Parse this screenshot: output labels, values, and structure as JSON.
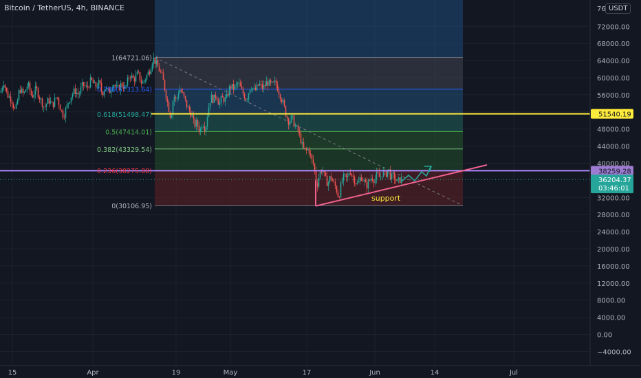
{
  "header": {
    "symbol_title": "Bitcoin / TetherUS, 4h, BINANCE",
    "currency": "USDT",
    "top_axis_label": "76"
  },
  "chart_data": {
    "type": "candlestick",
    "symbol": "Bitcoin / TetherUS",
    "interval": "4h",
    "exchange": "BINANCE",
    "x_tick_labels": [
      "15",
      "Apr",
      "19",
      "May",
      "17",
      "Jun",
      "14",
      "Jul"
    ],
    "y_tick_labels": [
      "72000.00",
      "68000.00",
      "64000.00",
      "60000.00",
      "56000.00",
      "52000.00",
      "48000.00",
      "44000.00",
      "40000.00",
      "32000.00",
      "28000.00",
      "24000.00",
      "20000.00",
      "16000.00",
      "12000.00",
      "8000.00",
      "4000.00",
      "0.00",
      "−4000.00"
    ],
    "ylim": [
      -6000,
      76000
    ],
    "price_path": [
      [
        0,
        56500
      ],
      [
        5,
        59000
      ],
      [
        10,
        56000
      ],
      [
        16,
        55000
      ],
      [
        22,
        52000
      ],
      [
        28,
        57500
      ],
      [
        34,
        56000
      ],
      [
        40,
        58500
      ],
      [
        46,
        55500
      ],
      [
        52,
        57500
      ],
      [
        58,
        55000
      ],
      [
        64,
        53000
      ],
      [
        70,
        54800
      ],
      [
        76,
        53500
      ],
      [
        82,
        55800
      ],
      [
        88,
        52500
      ],
      [
        92,
        51000
      ],
      [
        96,
        53000
      ],
      [
        102,
        55500
      ],
      [
        108,
        57000
      ],
      [
        114,
        56000
      ],
      [
        120,
        58500
      ],
      [
        126,
        57500
      ],
      [
        132,
        59500
      ],
      [
        138,
        57800
      ],
      [
        144,
        58800
      ],
      [
        148,
        56200
      ],
      [
        152,
        57800
      ],
      [
        158,
        56500
      ],
      [
        164,
        58800
      ],
      [
        170,
        57200
      ],
      [
        176,
        58500
      ],
      [
        182,
        57500
      ],
      [
        188,
        60800
      ],
      [
        194,
        59500
      ],
      [
        200,
        61000
      ],
      [
        206,
        58500
      ],
      [
        212,
        60200
      ],
      [
        218,
        62000
      ],
      [
        222,
        64700
      ],
      [
        226,
        63500
      ],
      [
        230,
        62200
      ],
      [
        236,
        60000
      ],
      [
        242,
        55000
      ],
      [
        248,
        50500
      ],
      [
        252,
        56000
      ],
      [
        256,
        54500
      ],
      [
        260,
        57500
      ],
      [
        266,
        55800
      ],
      [
        272,
        53000
      ],
      [
        278,
        51500
      ],
      [
        282,
        48800
      ],
      [
        286,
        49500
      ],
      [
        290,
        47300
      ],
      [
        294,
        49800
      ],
      [
        298,
        47800
      ],
      [
        302,
        52500
      ],
      [
        306,
        55500
      ],
      [
        310,
        54800
      ],
      [
        314,
        56200
      ],
      [
        318,
        53800
      ],
      [
        322,
        55200
      ],
      [
        328,
        54800
      ],
      [
        334,
        58000
      ],
      [
        340,
        57500
      ],
      [
        346,
        58800
      ],
      [
        352,
        56500
      ],
      [
        358,
        55000
      ],
      [
        364,
        58200
      ],
      [
        370,
        56800
      ],
      [
        376,
        58500
      ],
      [
        382,
        57500
      ],
      [
        388,
        59000
      ],
      [
        394,
        58200
      ],
      [
        400,
        58800
      ],
      [
        404,
        57200
      ],
      [
        408,
        55500
      ],
      [
        412,
        53500
      ],
      [
        416,
        51000
      ],
      [
        420,
        49500
      ],
      [
        424,
        50800
      ],
      [
        428,
        48800
      ],
      [
        432,
        47800
      ],
      [
        436,
        46000
      ],
      [
        440,
        43500
      ],
      [
        444,
        42800
      ],
      [
        448,
        43500
      ],
      [
        452,
        41000
      ],
      [
        456,
        39500
      ],
      [
        460,
        34500
      ],
      [
        464,
        37500
      ],
      [
        468,
        38800
      ],
      [
        472,
        36500
      ],
      [
        476,
        35200
      ],
      [
        480,
        37000
      ],
      [
        484,
        35500
      ],
      [
        488,
        34200
      ],
      [
        492,
        32000
      ],
      [
        496,
        35500
      ],
      [
        500,
        37000
      ],
      [
        504,
        36200
      ],
      [
        508,
        38500
      ],
      [
        512,
        37000
      ],
      [
        516,
        35800
      ],
      [
        520,
        35000
      ],
      [
        524,
        37000
      ],
      [
        528,
        36000
      ],
      [
        532,
        34500
      ],
      [
        536,
        35800
      ],
      [
        540,
        36800
      ],
      [
        544,
        36000
      ],
      [
        548,
        37500
      ],
      [
        552,
        36500
      ],
      [
        556,
        38000
      ],
      [
        560,
        37200
      ],
      [
        564,
        38800
      ],
      [
        568,
        36500
      ],
      [
        572,
        37200
      ],
      [
        576,
        35500
      ],
      [
        580,
        36000
      ],
      [
        584,
        36500
      ]
    ],
    "fibonacci": {
      "levels": [
        {
          "ratio_label": "1(64721.06)",
          "price": 64721.06,
          "color": "#787b86"
        },
        {
          "ratio_label": "0.786(57313.64)",
          "price": 57313.64,
          "color": "#2962ff"
        },
        {
          "ratio_label": "0.618(51498.47)",
          "price": 51498.47,
          "color": "#26a69a"
        },
        {
          "ratio_label": "0.5(47414.01)",
          "price": 47414.01,
          "color": "#4caf50"
        },
        {
          "ratio_label": "0.382(43329.54)",
          "price": 43329.54,
          "color": "#81c784"
        },
        {
          "ratio_label": "0.236(38275.88)",
          "price": 38275.88,
          "color": "#f23645"
        },
        {
          "ratio_label": "0(30106.95)",
          "price": 30106.95,
          "color": "#787b86"
        }
      ],
      "x_start": 225,
      "x_end": 673
    },
    "horizontal_lines": [
      {
        "price": 51540.19,
        "label": "51540.19",
        "color": "#ffeb3b",
        "label_bg": "#ffeb3b",
        "label_color": "#131722"
      },
      {
        "price": 38259.28,
        "label": "38259.28",
        "color": "#b388ff",
        "label_bg": "#9c7bd1",
        "label_color": "#131722"
      }
    ],
    "current_price": {
      "price": 36204.37,
      "label": "36204.37",
      "countdown": "03:46:01",
      "color": "#26a69a"
    },
    "annotations": [
      {
        "text": "support",
        "color": "#ffeb3b"
      }
    ]
  }
}
